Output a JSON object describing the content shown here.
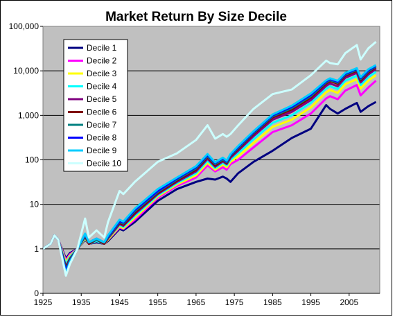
{
  "chart_data": {
    "type": "line",
    "title": "Market Return By Size Decile",
    "xlabel": "",
    "ylabel": "",
    "y_scale": "log",
    "ylim": [
      0.1,
      100000
    ],
    "xlim": [
      1925,
      2013
    ],
    "y_ticks": [
      {
        "value": 0.1,
        "label": "0"
      },
      {
        "value": 1,
        "label": "1"
      },
      {
        "value": 10,
        "label": "10"
      },
      {
        "value": 100,
        "label": "100"
      },
      {
        "value": 1000,
        "label": "1,000"
      },
      {
        "value": 10000,
        "label": "10,000"
      },
      {
        "value": 100000,
        "label": "100,000"
      }
    ],
    "x_ticks": [
      1925,
      1935,
      1945,
      1955,
      1965,
      1975,
      1985,
      1995,
      2005
    ],
    "grid": "horizontal",
    "plot_background": "#c0c0c0",
    "legend_position": "top-left",
    "x": [
      1925,
      1927,
      1928,
      1929,
      1931,
      1932,
      1934,
      1936,
      1937,
      1939,
      1941,
      1942,
      1945,
      1946,
      1949,
      1955,
      1960,
      1965,
      1968,
      1970,
      1972,
      1973,
      1974,
      1976,
      1980,
      1985,
      1990,
      1995,
      1999,
      2000,
      2002,
      2004,
      2007,
      2008,
      2010,
      2012
    ],
    "series": [
      {
        "name": "Decile 1",
        "color": "#000080",
        "values": [
          1,
          1.3,
          2,
          1.6,
          0.6,
          0.8,
          1.0,
          1.6,
          1.3,
          1.4,
          1.3,
          1.5,
          2.8,
          2.6,
          4,
          12,
          22,
          32,
          38,
          36,
          42,
          38,
          32,
          50,
          90,
          160,
          310,
          500,
          1700,
          1400,
          1100,
          1400,
          1900,
          1200,
          1600,
          2000
        ]
      },
      {
        "name": "Decile 2",
        "color": "#ff00ff",
        "values": [
          1,
          1.3,
          2,
          1.6,
          0.55,
          0.75,
          1.0,
          1.7,
          1.3,
          1.5,
          1.3,
          1.6,
          3.0,
          2.8,
          4.5,
          14,
          26,
          40,
          75,
          55,
          68,
          60,
          80,
          100,
          190,
          420,
          600,
          1100,
          2400,
          2700,
          2300,
          3600,
          4800,
          2800,
          4200,
          6000
        ]
      },
      {
        "name": "Decile 3",
        "color": "#ffff00",
        "values": [
          1,
          1.3,
          2,
          1.6,
          0.5,
          0.7,
          1.0,
          1.7,
          1.3,
          1.5,
          1.3,
          1.6,
          3.2,
          2.9,
          5,
          15,
          28,
          45,
          85,
          60,
          78,
          68,
          90,
          120,
          240,
          550,
          800,
          1500,
          3300,
          3700,
          3200,
          5000,
          6500,
          4000,
          6000,
          8000
        ]
      },
      {
        "name": "Decile 4",
        "color": "#00ffff",
        "values": [
          1,
          1.3,
          2,
          1.6,
          0.45,
          0.65,
          1.0,
          1.8,
          1.3,
          1.5,
          1.3,
          1.7,
          3.4,
          3.1,
          5.5,
          16,
          30,
          50,
          95,
          65,
          85,
          75,
          100,
          140,
          290,
          680,
          1000,
          1900,
          4000,
          4500,
          3900,
          6000,
          7800,
          4800,
          7200,
          9500
        ]
      },
      {
        "name": "Decile 5",
        "color": "#800080",
        "values": [
          1,
          1.3,
          2,
          1.6,
          0.4,
          0.6,
          1.0,
          1.9,
          1.3,
          1.6,
          1.3,
          1.7,
          3.6,
          3.3,
          6,
          17,
          32,
          55,
          105,
          70,
          92,
          80,
          110,
          160,
          340,
          800,
          1200,
          2200,
          4600,
          5200,
          4500,
          7000,
          9000,
          5500,
          8300,
          11000
        ]
      },
      {
        "name": "Decile 6",
        "color": "#800000",
        "values": [
          1,
          1.3,
          2,
          1.6,
          0.38,
          0.58,
          1.0,
          1.9,
          1.3,
          1.6,
          1.3,
          1.8,
          3.8,
          3.5,
          6.5,
          18,
          34,
          60,
          115,
          75,
          98,
          85,
          120,
          175,
          380,
          900,
          1350,
          2500,
          5200,
          5900,
          5100,
          7800,
          10000,
          6100,
          9200,
          12000
        ]
      },
      {
        "name": "Decile 7",
        "color": "#008080",
        "values": [
          1,
          1.3,
          2,
          1.6,
          0.35,
          0.55,
          1.0,
          2.0,
          1.4,
          1.6,
          1.4,
          1.8,
          4.0,
          3.7,
          7,
          19,
          36,
          64,
          120,
          80,
          102,
          88,
          125,
          185,
          400,
          950,
          1450,
          2700,
          5500,
          6200,
          5400,
          8200,
          10500,
          6500,
          9700,
          12500
        ]
      },
      {
        "name": "Decile 8",
        "color": "#0000ff",
        "values": [
          1,
          1.3,
          2,
          1.6,
          0.32,
          0.52,
          1.0,
          2.1,
          1.4,
          1.7,
          1.4,
          1.9,
          4.2,
          3.9,
          7.5,
          20,
          38,
          68,
          128,
          85,
          108,
          92,
          130,
          195,
          420,
          1000,
          1550,
          2900,
          5800,
          6500,
          5700,
          8600,
          11000,
          6900,
          10200,
          13000
        ]
      },
      {
        "name": "Decile 9",
        "color": "#00ccff",
        "values": [
          1,
          1.3,
          2,
          1.6,
          0.28,
          0.5,
          1.0,
          2.2,
          1.4,
          1.7,
          1.4,
          2.0,
          4.5,
          4.1,
          8,
          22,
          40,
          72,
          135,
          88,
          112,
          96,
          135,
          205,
          440,
          1050,
          1650,
          3100,
          6100,
          6800,
          6000,
          9000,
          11500,
          7200,
          10800,
          13500
        ]
      },
      {
        "name": "Decile 10",
        "color": "#ccffff",
        "values": [
          1,
          1.3,
          2,
          1.6,
          0.25,
          0.45,
          1.0,
          4.8,
          1.8,
          2.6,
          1.8,
          4.0,
          20,
          17,
          32,
          90,
          140,
          280,
          600,
          300,
          380,
          330,
          380,
          600,
          1400,
          3000,
          3800,
          8000,
          17000,
          15000,
          14000,
          25000,
          38000,
          18000,
          32000,
          45000
        ]
      }
    ]
  }
}
